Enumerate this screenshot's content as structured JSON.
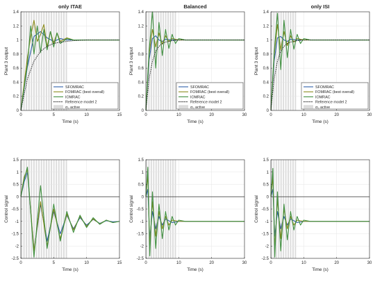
{
  "figure": {
    "panels": [
      {
        "title": "only ITAE",
        "ylabel": "Plant 3 output",
        "xlabel": "Time (s)"
      },
      {
        "title": "Balanced",
        "ylabel": "Plant 3 output",
        "xlabel": "Time (s)"
      },
      {
        "title": "only ISI",
        "ylabel": "Plant 3 output",
        "xlabel": "Time (s)"
      },
      {
        "title": "",
        "ylabel": "Control signal",
        "xlabel": "Time (s)"
      },
      {
        "title": "",
        "ylabel": "Control signal",
        "xlabel": "Time (s)"
      },
      {
        "title": "",
        "ylabel": "Control signal",
        "xlabel": "Time (s)"
      }
    ],
    "legend": [
      "SFOMRAC",
      "FOMRAC (best overall)",
      "IOMRAC",
      "Reference model 2",
      "σ₀ active"
    ],
    "colors": {
      "sfomrac": "#2f5fa8",
      "fomrac": "#8a8a1a",
      "iomrac": "#3f8f3f",
      "reference": "#1a1a1a",
      "sigma_band": "#dcdcdc",
      "zero_line": "#333333"
    }
  },
  "chart_data": [
    {
      "type": "line",
      "title": "only ITAE",
      "xlabel": "Time (s)",
      "ylabel": "Plant 3 output",
      "xlim": [
        0,
        15
      ],
      "ylim": [
        0,
        1.4
      ],
      "xticks": [
        0,
        5,
        10,
        15
      ],
      "yticks": [
        0,
        0.2,
        0.4,
        0.6,
        0.8,
        1,
        1.2,
        1.4
      ],
      "sigma_active_until": 7.2,
      "series": [
        {
          "name": "SFOMRAC",
          "x": [
            0,
            1,
            2,
            3,
            4,
            5,
            6,
            7,
            8,
            10,
            15
          ],
          "y": [
            0,
            0.62,
            1.05,
            1.12,
            1.03,
            0.98,
            1.02,
            1.0,
            1.0,
            1.0,
            1.0
          ]
        },
        {
          "name": "FOMRAC (best overall)",
          "x": [
            0,
            1,
            1.5,
            2,
            2.5,
            3,
            3.5,
            4,
            4.5,
            5,
            5.5,
            6,
            7,
            8,
            10,
            15
          ],
          "y": [
            0,
            0.75,
            1.05,
            1.28,
            0.98,
            1.08,
            1.22,
            0.9,
            1.12,
            0.95,
            1.1,
            0.98,
            1.03,
            1.0,
            1.0,
            1.0
          ]
        },
        {
          "name": "IOMRAC",
          "x": [
            0,
            1,
            1.5,
            2,
            2.5,
            3,
            3.5,
            4,
            4.5,
            5,
            5.5,
            6,
            7,
            8,
            10,
            15
          ],
          "y": [
            0,
            0.65,
            1.2,
            0.8,
            1.2,
            0.82,
            1.15,
            0.86,
            1.12,
            0.9,
            1.1,
            0.95,
            1.02,
            1.0,
            1.0,
            1.0
          ]
        },
        {
          "name": "Reference model 2",
          "x": [
            0,
            1,
            2,
            3,
            4,
            5,
            6,
            8,
            10,
            12,
            15
          ],
          "y": [
            0,
            0.45,
            0.7,
            0.84,
            0.91,
            0.95,
            0.97,
            0.99,
            1.0,
            1.0,
            1.0
          ]
        }
      ]
    },
    {
      "type": "line",
      "title": "Balanced",
      "xlabel": "Time (s)",
      "ylabel": "Plant 3 output",
      "xlim": [
        0,
        30
      ],
      "ylim": [
        0,
        1.4
      ],
      "xticks": [
        0,
        10,
        20,
        30
      ],
      "yticks": [
        0,
        0.2,
        0.4,
        0.6,
        0.8,
        1,
        1.2,
        1.4
      ],
      "sigma_active_until": 9.5,
      "series": [
        {
          "name": "SFOMRAC",
          "x": [
            0,
            1,
            2,
            3,
            4,
            5,
            6,
            8,
            10,
            30
          ],
          "y": [
            0,
            0.72,
            1.02,
            1.06,
            1.0,
            0.98,
            1.01,
            1.0,
            1.0,
            1.0
          ]
        },
        {
          "name": "FOMRAC (best overall)",
          "x": [
            0,
            1,
            2,
            3,
            4,
            5,
            6,
            7,
            8,
            10,
            30
          ],
          "y": [
            0,
            0.8,
            1.15,
            0.9,
            1.1,
            0.94,
            1.06,
            0.98,
            1.02,
            1.0,
            1.0
          ]
        },
        {
          "name": "IOMRAC",
          "x": [
            0,
            1,
            2,
            3,
            4,
            5,
            6,
            7,
            8,
            9,
            10,
            12,
            30
          ],
          "y": [
            0,
            0.85,
            1.4,
            0.6,
            1.25,
            0.78,
            1.15,
            0.88,
            1.08,
            0.95,
            1.02,
            1.0,
            1.0
          ]
        },
        {
          "name": "Reference model 2",
          "x": [
            0,
            1,
            2,
            3,
            4,
            5,
            6,
            8,
            10,
            30
          ],
          "y": [
            0,
            0.45,
            0.7,
            0.84,
            0.91,
            0.95,
            0.97,
            0.99,
            1.0,
            1.0
          ]
        }
      ]
    },
    {
      "type": "line",
      "title": "only ISI",
      "xlabel": "Time (s)",
      "ylabel": "Plant 3 output",
      "xlim": [
        0,
        30
      ],
      "ylim": [
        0,
        1.4
      ],
      "xticks": [
        0,
        10,
        20,
        30
      ],
      "yticks": [
        0,
        0.2,
        0.4,
        0.6,
        0.8,
        1,
        1.2,
        1.4
      ],
      "sigma_active_until": 8.0,
      "series": [
        {
          "name": "SFOMRAC",
          "x": [
            0,
            1,
            2,
            3,
            4,
            5,
            6,
            8,
            10,
            30
          ],
          "y": [
            0,
            0.7,
            1.03,
            1.05,
            1.0,
            0.98,
            1.01,
            1.0,
            1.0,
            1.0
          ]
        },
        {
          "name": "FOMRAC (best overall)",
          "x": [
            0,
            1,
            2,
            3,
            4,
            5,
            6,
            7,
            8,
            10,
            30
          ],
          "y": [
            0,
            0.78,
            1.22,
            0.86,
            1.12,
            0.92,
            1.06,
            0.97,
            1.02,
            1.0,
            1.0
          ]
        },
        {
          "name": "IOMRAC",
          "x": [
            0,
            1,
            2,
            3,
            4,
            5,
            6,
            7,
            8,
            9,
            10,
            12,
            30
          ],
          "y": [
            0,
            0.82,
            1.38,
            0.58,
            1.28,
            0.75,
            1.15,
            0.87,
            1.08,
            0.95,
            1.02,
            1.0,
            1.0
          ]
        },
        {
          "name": "Reference model 2",
          "x": [
            0,
            1,
            2,
            3,
            4,
            5,
            6,
            8,
            10,
            30
          ],
          "y": [
            0,
            0.45,
            0.7,
            0.84,
            0.91,
            0.95,
            0.97,
            0.99,
            1.0,
            1.0
          ]
        }
      ]
    },
    {
      "type": "line",
      "title": "",
      "xlabel": "Time (s)",
      "ylabel": "Control signal",
      "xlim": [
        0,
        15
      ],
      "ylim": [
        -2.5,
        1.5
      ],
      "xticks": [
        0,
        5,
        10,
        15
      ],
      "yticks": [
        -2.5,
        -2,
        -1.5,
        -1,
        -0.5,
        0,
        0.5,
        1,
        1.5
      ],
      "sigma_active_until": 7.2,
      "series": [
        {
          "name": "SFOMRAC",
          "x": [
            0,
            0.5,
            1.0,
            2.0,
            3.0,
            4.0,
            5.0,
            6.0,
            7.0,
            8.0,
            9.0,
            10.0,
            11.0,
            12.0,
            13.0,
            14.0,
            15.0
          ],
          "y": [
            0,
            0.6,
            1.0,
            -2.2,
            -0.3,
            -1.8,
            -0.6,
            -1.5,
            -0.75,
            -1.3,
            -0.85,
            -1.15,
            -0.92,
            -1.08,
            -0.97,
            -1.02,
            -1.0
          ]
        },
        {
          "name": "FOMRAC (best overall)",
          "x": [
            0,
            0.5,
            1.0,
            2.0,
            3.0,
            4.0,
            5.0,
            6.0,
            7.0,
            8.0,
            9.0,
            10.0,
            11.0,
            12.0,
            13.0,
            14.0,
            15.0
          ],
          "y": [
            0,
            0.8,
            1.1,
            -2.2,
            -0.2,
            -2.0,
            -0.5,
            -1.7,
            -0.7,
            -1.35,
            -0.8,
            -1.2,
            -0.9,
            -1.1,
            -0.95,
            -1.05,
            -1.0
          ]
        },
        {
          "name": "IOMRAC",
          "x": [
            0,
            0.5,
            1.0,
            2.0,
            3.0,
            4.0,
            5.0,
            6.0,
            7.0,
            8.0,
            9.0,
            10.0,
            11.0,
            12.0,
            13.0,
            14.0,
            15.0
          ],
          "y": [
            0,
            0.7,
            1.2,
            -2.45,
            0.45,
            -2.1,
            -0.3,
            -1.8,
            -0.6,
            -1.45,
            -0.75,
            -1.25,
            -0.85,
            -1.12,
            -0.95,
            -1.05,
            -1.0
          ]
        }
      ]
    },
    {
      "type": "line",
      "title": "",
      "xlabel": "Time (s)",
      "ylabel": "Control signal",
      "xlim": [
        0,
        30
      ],
      "ylim": [
        -2.5,
        1.5
      ],
      "xticks": [
        0,
        10,
        20,
        30
      ],
      "yticks": [
        -2.5,
        -2,
        -1.5,
        -1,
        -0.5,
        0,
        0.5,
        1,
        1.5
      ],
      "sigma_active_until": 9.5,
      "series": [
        {
          "name": "SFOMRAC",
          "x": [
            0,
            0.6,
            1.2,
            2.0,
            3.0,
            4.0,
            5.0,
            6.0,
            8.0,
            10.0,
            30.0
          ],
          "y": [
            0,
            0.3,
            -1.7,
            -0.6,
            -1.3,
            -0.8,
            -1.15,
            -0.9,
            -1.05,
            -1.0,
            -1.0
          ]
        },
        {
          "name": "FOMRAC (best overall)",
          "x": [
            0,
            0.6,
            1.2,
            2.0,
            3.0,
            4.0,
            5.0,
            6.0,
            7.0,
            8.0,
            10.0,
            30.0
          ],
          "y": [
            0,
            0.9,
            -2.0,
            -0.2,
            -1.6,
            -0.6,
            -1.3,
            -0.8,
            -1.15,
            -0.95,
            -1.0,
            -1.0
          ]
        },
        {
          "name": "IOMRAC",
          "x": [
            0,
            0.6,
            1.2,
            2.0,
            3.0,
            4.0,
            5.0,
            6.0,
            7.0,
            8.0,
            9.0,
            10.0,
            12.0,
            30.0
          ],
          "y": [
            0,
            1.2,
            -2.4,
            0.2,
            -2.1,
            -0.3,
            -1.7,
            -0.6,
            -1.35,
            -0.8,
            -1.15,
            -0.95,
            -1.0,
            -1.0
          ]
        }
      ]
    },
    {
      "type": "line",
      "title": "",
      "xlabel": "Time (s)",
      "ylabel": "Control signal",
      "xlim": [
        0,
        30
      ],
      "ylim": [
        -2.5,
        1.5
      ],
      "xticks": [
        0,
        10,
        20,
        30
      ],
      "yticks": [
        -2.5,
        -2,
        -1.5,
        -1,
        -0.5,
        0,
        0.5,
        1,
        1.5
      ],
      "sigma_active_until": 8.0,
      "series": [
        {
          "name": "SFOMRAC",
          "x": [
            0,
            0.6,
            1.2,
            2.0,
            3.0,
            4.0,
            5.0,
            6.0,
            8.0,
            10.0,
            30.0
          ],
          "y": [
            0,
            0.3,
            -1.6,
            -0.6,
            -1.3,
            -0.8,
            -1.15,
            -0.9,
            -1.05,
            -1.0,
            -1.0
          ]
        },
        {
          "name": "FOMRAC (best overall)",
          "x": [
            0,
            0.6,
            1.2,
            2.0,
            3.0,
            4.0,
            5.0,
            6.0,
            7.0,
            8.0,
            10.0,
            30.0
          ],
          "y": [
            0,
            0.8,
            -2.1,
            -0.1,
            -1.7,
            -0.5,
            -1.3,
            -0.8,
            -1.15,
            -0.95,
            -1.0,
            -1.0
          ]
        },
        {
          "name": "IOMRAC",
          "x": [
            0,
            0.6,
            1.2,
            2.0,
            3.0,
            4.0,
            5.0,
            6.0,
            7.0,
            8.0,
            9.0,
            10.0,
            12.0,
            30.0
          ],
          "y": [
            0,
            1.15,
            -2.45,
            0.2,
            -2.2,
            -0.3,
            -1.75,
            -0.6,
            -1.35,
            -0.8,
            -1.15,
            -0.95,
            -1.0,
            -1.0
          ]
        }
      ]
    }
  ]
}
